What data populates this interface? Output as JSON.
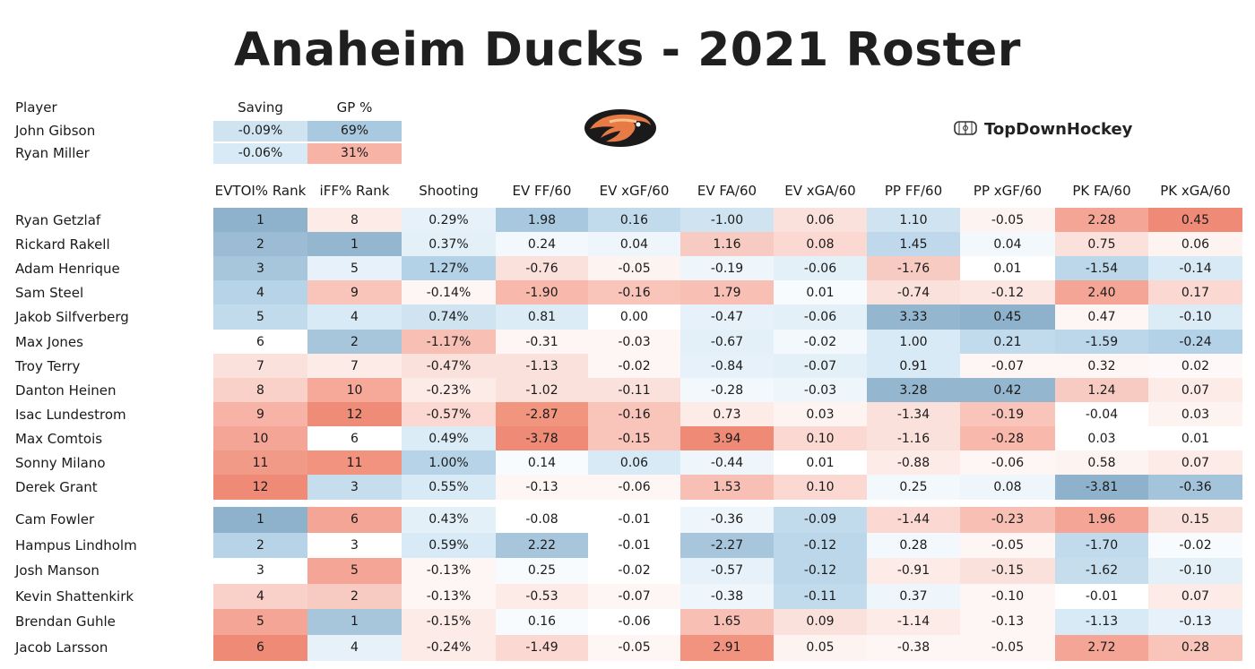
{
  "title": "Anaheim Ducks - 2021 Roster",
  "brand": {
    "name": "TopDownHockey",
    "icon": "rink-icon"
  },
  "logo": {
    "icon": "ducks-logo-icon"
  },
  "goalies": {
    "headers": {
      "player": "Player",
      "saving": "Saving",
      "gp": "GP %"
    },
    "rows": [
      {
        "name": "John Gibson",
        "saving": "-0.09%",
        "gp": "69%",
        "saving_color": "#cfe3f0",
        "gp_color": "#a9c9e0"
      },
      {
        "name": "Ryan Miller",
        "saving": "-0.06%",
        "gp": "31%",
        "saving_color": "#d7eaf5",
        "gp_color": "#f6b3a6"
      }
    ]
  },
  "skaters": {
    "headers": [
      "EVTOI% Rank",
      "iFF% Rank",
      "Shooting",
      "EV FF/60",
      "EV xGF/60",
      "EV FA/60",
      "EV xGA/60",
      "PP FF/60",
      "PP xGF/60",
      "PK FA/60",
      "PK xGA/60"
    ],
    "forwards": [
      {
        "name": "Ryan Getzlaf",
        "values": [
          "1",
          "8",
          "0.29%",
          "1.98",
          "0.16",
          "-1.00",
          "0.06",
          "1.10",
          "-0.05",
          "2.28",
          "0.45"
        ],
        "colors": [
          "#8fb2cc",
          "#fdebe8",
          "#e6f1f9",
          "#a7c8de",
          "#c1dbec",
          "#cfe3f0",
          "#fbe1dc",
          "#cfe3f0",
          "#fdf3f1",
          "#f4a596",
          "#ee8a76"
        ]
      },
      {
        "name": "Rickard Rakell",
        "values": [
          "2",
          "1",
          "0.37%",
          "0.24",
          "0.04",
          "1.16",
          "0.08",
          "1.45",
          "0.04",
          "0.75",
          "0.06"
        ],
        "colors": [
          "#9bbcd4",
          "#95b6cf",
          "#e3f0f8",
          "#f3f8fc",
          "#eef6fb",
          "#f8cbc2",
          "#fbd9d2",
          "#bfd8eb",
          "#f3f8fc",
          "#fbe1dc",
          "#fdf3f1"
        ]
      },
      {
        "name": "Adam Henrique",
        "values": [
          "3",
          "5",
          "1.27%",
          "-0.76",
          "-0.05",
          "-0.19",
          "-0.06",
          "-1.76",
          "0.01",
          "-1.54",
          "-0.14"
        ],
        "colors": [
          "#a7c6dc",
          "#e6f1f9",
          "#b3d2e8",
          "#fbe1dc",
          "#fdf3f1",
          "#eef6fb",
          "#e3f0f8",
          "#f8cbc2",
          "#ffffff",
          "#bcd7ea",
          "#d7eaf5"
        ]
      },
      {
        "name": "Sam Steel",
        "values": [
          "4",
          "9",
          "-0.14%",
          "-1.90",
          "-0.16",
          "1.79",
          "0.01",
          "-0.74",
          "-0.12",
          "2.40",
          "0.17"
        ],
        "colors": [
          "#b7d3e7",
          "#f9c4ba",
          "#fef6f4",
          "#f8b8ab",
          "#f9c4ba",
          "#f8c0b4",
          "#f7fbfd",
          "#fbe1dc",
          "#fbe6e1",
          "#f4a596",
          "#fbd9d2"
        ]
      },
      {
        "name": "Jakob Silfverberg",
        "values": [
          "5",
          "4",
          "0.74%",
          "0.81",
          "0.00",
          "-0.47",
          "-0.06",
          "3.33",
          "0.45",
          "0.47",
          "-0.10"
        ],
        "colors": [
          "#c1dbec",
          "#d7eaf5",
          "#cfe3f0",
          "#dbecf6",
          "#ffffff",
          "#e6f1f9",
          "#e3f0f8",
          "#94b6cf",
          "#8fb2cc",
          "#fef6f4",
          "#dbecf6"
        ]
      },
      {
        "name": "Max Jones",
        "values": [
          "6",
          "2",
          "-1.17%",
          "-0.31",
          "-0.03",
          "-0.67",
          "-0.02",
          "1.00",
          "0.21",
          "-1.59",
          "-0.24"
        ],
        "colors": [
          "#ffffff",
          "#a7c6dc",
          "#f8c0b4",
          "#fef6f4",
          "#fef6f4",
          "#e3f0f8",
          "#f3f8fc",
          "#d7eaf5",
          "#c1dbec",
          "#bcd7ea",
          "#b3d2e8"
        ]
      },
      {
        "name": "Troy Terry",
        "values": [
          "7",
          "7",
          "-0.47%",
          "-1.13",
          "-0.02",
          "-0.84",
          "-0.07",
          "0.91",
          "-0.07",
          "0.32",
          "0.02"
        ],
        "colors": [
          "#fbe1dc",
          "#fdebe8",
          "#fbe1dc",
          "#fbe1dc",
          "#fef6f4",
          "#e6f1f9",
          "#e3f0f8",
          "#d7eaf5",
          "#fef6f4",
          "#fef6f4",
          "#fef9f8"
        ]
      },
      {
        "name": "Danton Heinen",
        "values": [
          "8",
          "10",
          "-0.23%",
          "-1.02",
          "-0.11",
          "-0.28",
          "-0.03",
          "3.28",
          "0.42",
          "1.24",
          "0.07"
        ],
        "colors": [
          "#f9d1c8",
          "#f6a999",
          "#fdebe8",
          "#fbe1dc",
          "#fbe1dc",
          "#f3f8fc",
          "#eef6fb",
          "#94b6cf",
          "#94b6cf",
          "#f8cbc2",
          "#fdebe8"
        ]
      },
      {
        "name": "Isac Lundestrom",
        "values": [
          "9",
          "12",
          "-0.57%",
          "-2.87",
          "-0.16",
          "0.73",
          "0.03",
          "-1.34",
          "-0.19",
          "-0.04",
          "0.03"
        ],
        "colors": [
          "#f6b3a6",
          "#ef8c78",
          "#fbd9d2",
          "#f2957f",
          "#f9c4ba",
          "#fdebe8",
          "#fdf3f1",
          "#fbe1dc",
          "#f9c4ba",
          "#ffffff",
          "#fdf3f1"
        ]
      },
      {
        "name": "Max Comtois",
        "values": [
          "10",
          "6",
          "0.49%",
          "-3.78",
          "-0.15",
          "3.94",
          "0.10",
          "-1.16",
          "-0.28",
          "0.03",
          "0.01"
        ],
        "colors": [
          "#f4a596",
          "#ffffff",
          "#dbecf6",
          "#ee8a76",
          "#f9c4ba",
          "#ee8a76",
          "#fbd9d2",
          "#fbe1dc",
          "#f8b8ab",
          "#ffffff",
          "#ffffff"
        ]
      },
      {
        "name": "Sonny Milano",
        "values": [
          "11",
          "11",
          "1.00%",
          "0.14",
          "0.06",
          "-0.44",
          "0.01",
          "-0.88",
          "-0.06",
          "0.58",
          "0.07"
        ],
        "colors": [
          "#f09a87",
          "#f29380",
          "#b7d3e7",
          "#f7fbfd",
          "#d7eaf5",
          "#eef6fb",
          "#ffffff",
          "#fdebe8",
          "#fef6f4",
          "#fdf3f1",
          "#fdebe8"
        ]
      },
      {
        "name": "Derek Grant",
        "values": [
          "12",
          "3",
          "0.55%",
          "-0.13",
          "-0.06",
          "1.53",
          "0.10",
          "0.25",
          "0.08",
          "-3.81",
          "-0.36"
        ],
        "colors": [
          "#ee8a76",
          "#c6dded",
          "#d7eaf5",
          "#fef6f4",
          "#fef6f4",
          "#f8c0b4",
          "#fbd9d2",
          "#f3f8fc",
          "#eef6fb",
          "#8fb2cc",
          "#a4c4dc"
        ]
      }
    ],
    "defense": [
      {
        "name": "Cam Fowler",
        "values": [
          "1",
          "6",
          "0.43%",
          "-0.08",
          "-0.01",
          "-0.36",
          "-0.09",
          "-1.44",
          "-0.23",
          "1.96",
          "0.15"
        ],
        "colors": [
          "#8fb2cc",
          "#f4a596",
          "#e3f0f8",
          "#ffffff",
          "#ffffff",
          "#eef6fb",
          "#c1dbec",
          "#fbd9d2",
          "#f8c0b4",
          "#f4a596",
          "#fbe1dc"
        ]
      },
      {
        "name": "Hampus Lindholm",
        "values": [
          "2",
          "3",
          "0.59%",
          "2.22",
          "-0.01",
          "-2.27",
          "-0.12",
          "0.28",
          "-0.05",
          "-1.70",
          "-0.02"
        ],
        "colors": [
          "#b7d3e7",
          "#ffffff",
          "#d7eaf5",
          "#a7c6dc",
          "#ffffff",
          "#a7c6dc",
          "#bcd7ea",
          "#f3f8fc",
          "#fef6f4",
          "#c1dbec",
          "#f7fbfd"
        ]
      },
      {
        "name": "Josh Manson",
        "values": [
          "3",
          "5",
          "-0.13%",
          "0.25",
          "-0.02",
          "-0.57",
          "-0.12",
          "-0.91",
          "-0.15",
          "-1.62",
          "-0.10"
        ],
        "colors": [
          "#ffffff",
          "#f4a596",
          "#fef6f4",
          "#f7fbfd",
          "#ffffff",
          "#e6f1f9",
          "#bcd7ea",
          "#fdebe8",
          "#fbe1dc",
          "#c6dded",
          "#e3f0f8"
        ]
      },
      {
        "name": "Kevin Shattenkirk",
        "values": [
          "4",
          "2",
          "-0.13%",
          "-0.53",
          "-0.07",
          "-0.38",
          "-0.11",
          "0.37",
          "-0.10",
          "-0.01",
          "0.07"
        ],
        "colors": [
          "#f9d1c8",
          "#f8cbc2",
          "#fef6f4",
          "#fdebe8",
          "#fef6f4",
          "#eef6fb",
          "#c1dbec",
          "#eef6fb",
          "#fef6f4",
          "#ffffff",
          "#fdebe8"
        ]
      },
      {
        "name": "Brendan Guhle",
        "values": [
          "5",
          "1",
          "-0.15%",
          "0.16",
          "-0.06",
          "1.65",
          "0.09",
          "-1.14",
          "-0.13",
          "-1.13",
          "-0.13"
        ],
        "colors": [
          "#f4a596",
          "#a7c6dc",
          "#fdebe8",
          "#f7fbfd",
          "#ffffff",
          "#f8c0b4",
          "#fbe1dc",
          "#fdebe8",
          "#fef6f4",
          "#d7eaf5",
          "#e6f1f9"
        ]
      },
      {
        "name": "Jacob Larsson",
        "values": [
          "6",
          "4",
          "-0.24%",
          "-1.49",
          "-0.05",
          "2.91",
          "0.05",
          "-0.38",
          "-0.05",
          "2.72",
          "0.28"
        ],
        "colors": [
          "#ee8a76",
          "#e6f1f9",
          "#fdebe8",
          "#fbd9d2",
          "#fef6f4",
          "#f29380",
          "#fdf3f1",
          "#fef6f4",
          "#fef6f4",
          "#f4a596",
          "#f9c4ba"
        ]
      }
    ]
  }
}
